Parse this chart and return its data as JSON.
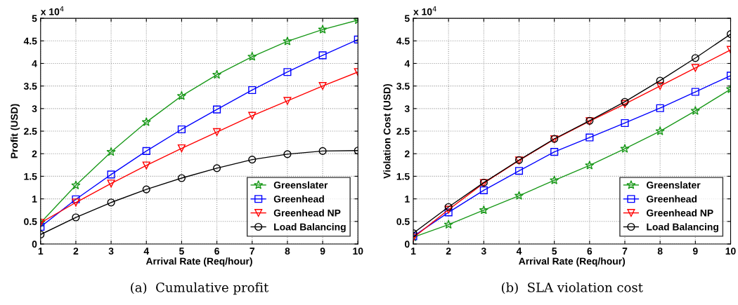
{
  "chart_data": [
    {
      "type": "line",
      "xlabel": "Arrival Rate (Req/hour)",
      "ylabel": "Profit (USD)",
      "x": [
        1,
        2,
        3,
        4,
        5,
        6,
        7,
        8,
        9,
        10
      ],
      "xlim": [
        1,
        10
      ],
      "xticks": [
        1,
        2,
        3,
        4,
        5,
        6,
        7,
        8,
        9,
        10
      ],
      "ylim": [
        0,
        5
      ],
      "yticks": [
        0,
        0.5,
        1,
        1.5,
        2,
        2.5,
        3,
        3.5,
        4,
        4.5,
        5
      ],
      "grid": true,
      "legend": "bottom right",
      "line_style": "solid",
      "annotations": [
        "x 10$^{4}$",
        "(a)  Cumulative profit"
      ],
      "series": [
        {
          "name": "Greenslater",
          "color": "#1a991a",
          "marker": "star",
          "values": [
            0.47,
            1.3,
            2.04,
            2.7,
            3.28,
            3.75,
            4.15,
            4.49,
            4.75,
            4.96
          ]
        },
        {
          "name": "Greenhead",
          "color": "#0000ff",
          "marker": "square",
          "values": [
            0.38,
            0.99,
            1.54,
            2.06,
            2.54,
            2.98,
            3.41,
            3.81,
            4.18,
            4.53
          ]
        },
        {
          "name": "Greenhead NP",
          "color": "#ff0000",
          "marker": "triangle",
          "values": [
            0.47,
            0.92,
            1.34,
            1.74,
            2.12,
            2.48,
            2.84,
            3.17,
            3.5,
            3.81
          ]
        },
        {
          "name": "Load Balancing",
          "color": "#000000",
          "marker": "circle",
          "values": [
            0.21,
            0.59,
            0.92,
            1.21,
            1.46,
            1.68,
            1.87,
            1.99,
            2.06,
            2.07
          ]
        }
      ]
    },
    {
      "type": "line",
      "xlabel": "Arrival Rate (Req/hour)",
      "ylabel": "Violation Cost (USD)",
      "x": [
        1,
        2,
        3,
        4,
        5,
        6,
        7,
        8,
        9,
        10
      ],
      "xlim": [
        1,
        10
      ],
      "xticks": [
        1,
        2,
        3,
        4,
        5,
        6,
        7,
        8,
        9,
        10
      ],
      "ylim": [
        0,
        5
      ],
      "yticks": [
        0,
        0.5,
        1,
        1.5,
        2,
        2.5,
        3,
        3.5,
        4,
        4.5,
        5
      ],
      "grid": true,
      "legend": "bottom right",
      "line_style": "solid",
      "annotations": [
        "x 10$^{4}$",
        "(b)  SLA violation cost"
      ],
      "series": [
        {
          "name": "Greenslater",
          "color": "#1a991a",
          "marker": "star",
          "values": [
            0.15,
            0.43,
            0.75,
            1.07,
            1.41,
            1.74,
            2.11,
            2.5,
            2.95,
            3.43
          ]
        },
        {
          "name": "Greenhead",
          "color": "#0000ff",
          "marker": "square",
          "values": [
            0.17,
            0.7,
            1.19,
            1.62,
            2.04,
            2.36,
            2.68,
            3.01,
            3.37,
            3.73
          ]
        },
        {
          "name": "Greenhead NP",
          "color": "#ff0000",
          "marker": "triangle",
          "values": [
            0.14,
            0.76,
            1.35,
            1.85,
            2.32,
            2.72,
            3.1,
            3.5,
            3.9,
            4.3
          ]
        },
        {
          "name": "Load Balancing",
          "color": "#000000",
          "marker": "circle",
          "values": [
            0.24,
            0.82,
            1.36,
            1.86,
            2.33,
            2.73,
            3.15,
            3.62,
            4.12,
            4.65
          ]
        }
      ]
    }
  ]
}
